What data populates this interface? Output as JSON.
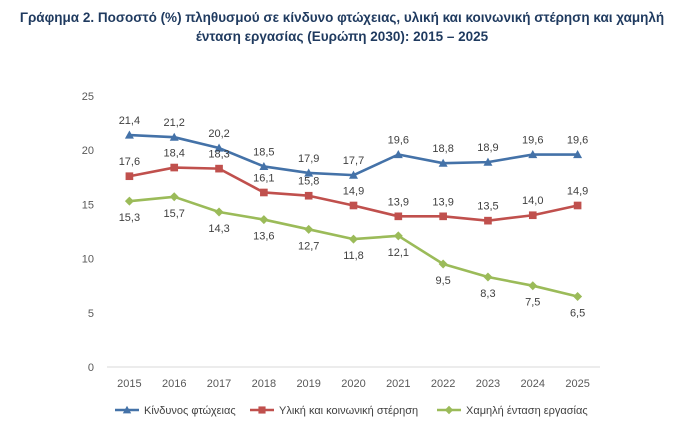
{
  "chart_data": {
    "type": "line",
    "title_line1": "Γράφημα 2. Ποσοστό (%) πληθυσμού σε κίνδυνο φτώχειας, υλική και κοινωνική στέρηση και χαμηλή",
    "title_line2": "ένταση εργασίας (Ευρώπη 2030): 2015 – 2025",
    "categories": [
      "2015",
      "2016",
      "2017",
      "2018",
      "2019",
      "2020",
      "2021",
      "2022",
      "2023",
      "2024",
      "2025"
    ],
    "ylim": [
      0,
      25
    ],
    "yticks": [
      0,
      5,
      10,
      15,
      20,
      25
    ],
    "legend_position": "bottom",
    "series": [
      {
        "name": "Κίνδυνος φτώχειας",
        "color": "#4472a8",
        "marker": "triangle",
        "values": [
          21.4,
          21.2,
          20.2,
          18.5,
          17.9,
          17.7,
          19.6,
          18.8,
          18.9,
          19.6,
          19.6
        ],
        "labels": [
          "21,4",
          "21,2",
          "20,2",
          "18,5",
          "17,9",
          "17,7",
          "19,6",
          "18,8",
          "18,9",
          "19,6",
          "19,6"
        ],
        "label_pos": "above"
      },
      {
        "name": "Υλική και κοινωνική στέρηση",
        "color": "#c0504d",
        "marker": "square",
        "values": [
          17.6,
          18.4,
          18.3,
          16.1,
          15.8,
          14.9,
          13.9,
          13.9,
          13.5,
          14.0,
          14.9
        ],
        "labels": [
          "17,6",
          "18,4",
          "18,3",
          "16,1",
          "15,8",
          "14,9",
          "13,9",
          "13,9",
          "13,5",
          "14,0",
          "14,9"
        ],
        "label_pos": "above"
      },
      {
        "name": "Χαμηλή ένταση εργασίας",
        "color": "#9bbb59",
        "marker": "diamond",
        "values": [
          15.3,
          15.7,
          14.3,
          13.6,
          12.7,
          11.8,
          12.1,
          9.5,
          8.3,
          7.5,
          6.5
        ],
        "labels": [
          "15,3",
          "15,7",
          "14,3",
          "13,6",
          "12,7",
          "11,8",
          "12,1",
          "9,5",
          "8,3",
          "7,5",
          "6,5"
        ],
        "label_pos": "below"
      }
    ]
  }
}
